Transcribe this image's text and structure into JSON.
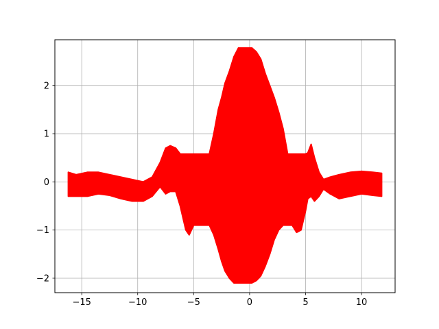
{
  "chart_data": {
    "type": "area",
    "title": "",
    "xlabel": "",
    "ylabel": "",
    "xlim": [
      -17.4,
      13.0
    ],
    "ylim": [
      -2.3,
      2.95
    ],
    "x_ticks": [
      -15,
      -10,
      -5,
      0,
      5,
      10
    ],
    "y_ticks": [
      -2,
      -1,
      0,
      1,
      2
    ],
    "x_tick_labels": [
      "−15",
      "−10",
      "−5",
      "0",
      "5",
      "10"
    ],
    "y_tick_labels": [
      "−2",
      "−1",
      "0",
      "1",
      "2"
    ],
    "grid": true,
    "legend": "none",
    "series": [
      {
        "color": "#ff0000",
        "x": [
          -16.2,
          -15.5,
          -14.5,
          -13.5,
          -12.5,
          -11.5,
          -10.5,
          -9.5,
          -8.7,
          -8.0,
          -7.5,
          -7.1,
          -6.6,
          -6.2,
          -5.9,
          -5.7,
          -5.4,
          -5.2,
          -5.0,
          -4.8,
          -4.6,
          -4.3,
          -4.0,
          -3.6,
          -3.2,
          -2.8,
          -2.5,
          -2.2,
          -1.8,
          -1.4,
          -1.0,
          -0.6,
          -0.2,
          0.2,
          0.6,
          1.0,
          1.4,
          1.8,
          2.2,
          2.6,
          3.0,
          3.4,
          3.8,
          4.2,
          4.6,
          5.0,
          5.2,
          5.5,
          5.8,
          6.2,
          6.6,
          7.2,
          8.0,
          9.0,
          10.0,
          11.0,
          11.8
        ],
        "y_upper": [
          0.2,
          0.15,
          0.2,
          0.2,
          0.15,
          0.1,
          0.05,
          0.0,
          0.1,
          0.4,
          0.7,
          0.75,
          0.7,
          0.58,
          0.58,
          0.58,
          0.58,
          0.58,
          0.58,
          0.58,
          0.58,
          0.58,
          0.58,
          0.58,
          1.0,
          1.5,
          1.75,
          2.05,
          2.3,
          2.6,
          2.78,
          2.78,
          2.78,
          2.78,
          2.7,
          2.55,
          2.25,
          2.0,
          1.75,
          1.45,
          1.1,
          0.58,
          0.58,
          0.58,
          0.58,
          0.58,
          0.6,
          0.78,
          0.5,
          0.2,
          0.05,
          0.1,
          0.15,
          0.2,
          0.22,
          0.2,
          0.18
        ],
        "y_lower": [
          -0.3,
          -0.3,
          -0.3,
          -0.25,
          -0.28,
          -0.35,
          -0.4,
          -0.4,
          -0.3,
          -0.1,
          -0.25,
          -0.2,
          -0.2,
          -0.5,
          -0.8,
          -1.0,
          -1.1,
          -1.0,
          -0.9,
          -0.9,
          -0.9,
          -0.9,
          -0.9,
          -0.9,
          -1.1,
          -1.4,
          -1.65,
          -1.85,
          -2.0,
          -2.1,
          -2.1,
          -2.1,
          -2.1,
          -2.1,
          -2.05,
          -1.95,
          -1.75,
          -1.5,
          -1.2,
          -1.0,
          -0.9,
          -0.9,
          -0.9,
          -1.05,
          -1.0,
          -0.6,
          -0.35,
          -0.3,
          -0.4,
          -0.3,
          -0.15,
          -0.25,
          -0.35,
          -0.3,
          -0.25,
          -0.28,
          -0.3
        ]
      }
    ]
  }
}
